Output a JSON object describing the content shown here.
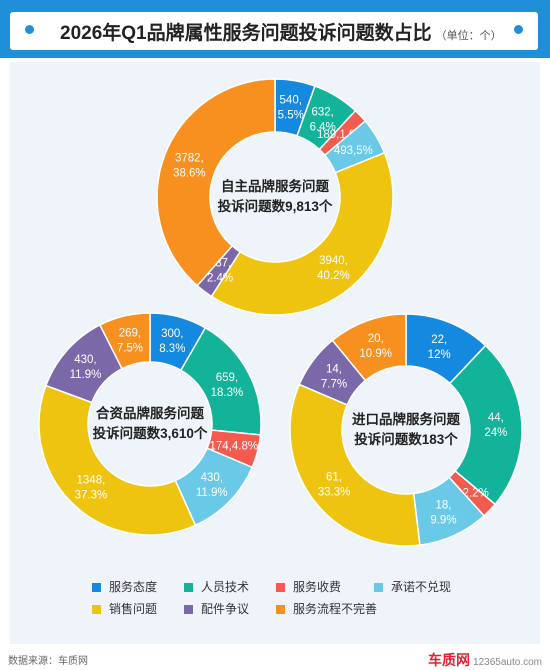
{
  "header": {
    "title": "2026年Q1品牌属性服务问题投诉问题数占比",
    "unit": "（单位：个）"
  },
  "colors": {
    "header_bar": "#1f8fd8",
    "panel_bg": "#eef4fa"
  },
  "chart_data": [
    {
      "type": "pie",
      "style": "donut",
      "center_text": [
        "自主品牌服务问题",
        "投诉问题数9,813个"
      ],
      "slices": [
        {
          "category": "服务态度",
          "value": 540,
          "percent": "5.5%",
          "label": [
            "540,",
            "5.5%"
          ]
        },
        {
          "category": "人员技术",
          "value": 632,
          "percent": "6.4%",
          "label": [
            "632,",
            "6.4%"
          ]
        },
        {
          "category": "服务收费",
          "value": 189,
          "percent": "1.9%",
          "label": [
            "189,1.9%"
          ]
        },
        {
          "category": "承诺不兑现",
          "value": 493,
          "percent": "5%",
          "label": [
            "493,5%"
          ]
        },
        {
          "category": "销售问题",
          "value": 3940,
          "percent": "40.2%",
          "label": [
            "3940,",
            "40.2%"
          ]
        },
        {
          "category": "配件争议",
          "value": 237,
          "percent": "2.4%",
          "label": [
            "237,",
            "2.4%"
          ]
        },
        {
          "category": "服务流程不完善",
          "value": 3782,
          "percent": "38.6%",
          "label": [
            "3782,",
            "38.6%"
          ]
        }
      ]
    },
    {
      "type": "pie",
      "style": "donut",
      "center_text": [
        "合资品牌服务问题",
        "投诉问题数3,610个"
      ],
      "slices": [
        {
          "category": "服务态度",
          "value": 300,
          "percent": "8.3%",
          "label": [
            "300,",
            "8.3%"
          ]
        },
        {
          "category": "人员技术",
          "value": 659,
          "percent": "18.3%",
          "label": [
            "659,",
            "18.3%"
          ]
        },
        {
          "category": "服务收费",
          "value": 174,
          "percent": "4.8%",
          "label": [
            "174,4.8%"
          ]
        },
        {
          "category": "承诺不兑现",
          "value": 430,
          "percent": "11.9%",
          "label": [
            "430,",
            "11.9%"
          ]
        },
        {
          "category": "销售问题",
          "value": 1348,
          "percent": "37.3%",
          "label": [
            "1348,",
            "37.3%"
          ]
        },
        {
          "category": "配件争议",
          "value": 430,
          "percent": "11.9%",
          "label": [
            "430,",
            "11.9%"
          ]
        },
        {
          "category": "服务流程不完善",
          "value": 269,
          "percent": "7.5%",
          "label": [
            "269,",
            "7.5%"
          ]
        }
      ]
    },
    {
      "type": "pie",
      "style": "donut",
      "center_text": [
        "进口品牌服务问题",
        "投诉问题数183个"
      ],
      "slices": [
        {
          "category": "服务态度",
          "value": 22,
          "percent": "12%",
          "label": [
            "22,",
            "12%"
          ]
        },
        {
          "category": "人员技术",
          "value": 44,
          "percent": "24%",
          "label": [
            "44,",
            "24%"
          ]
        },
        {
          "category": "服务收费",
          "value": 4,
          "percent": "2.2%",
          "label": [
            "4,2.2%"
          ]
        },
        {
          "category": "承诺不兑现",
          "value": 18,
          "percent": "9.9%",
          "label": [
            "18,",
            "9.9%"
          ]
        },
        {
          "category": "销售问题",
          "value": 61,
          "percent": "33.3%",
          "label": [
            "61,",
            "33.3%"
          ]
        },
        {
          "category": "配件争议",
          "value": 14,
          "percent": "7.7%",
          "label": [
            "14,",
            "7.7%"
          ]
        },
        {
          "category": "服务流程不完善",
          "value": 20,
          "percent": "10.9%",
          "label": [
            "20,",
            "10.9%"
          ]
        }
      ]
    }
  ],
  "legend": [
    {
      "label": "服务态度",
      "color": "#1589e0"
    },
    {
      "label": "人员技术",
      "color": "#13b39a"
    },
    {
      "label": "服务收费",
      "color": "#f25b4e"
    },
    {
      "label": "承诺不兑现",
      "color": "#69c9e6"
    },
    {
      "label": "销售问题",
      "color": "#efc410"
    },
    {
      "label": "配件争议",
      "color": "#7a68a8"
    },
    {
      "label": "服务流程不完善",
      "color": "#f7901e"
    }
  ],
  "footer": {
    "source": "数据来源：车质网",
    "watermark_logo": "车质网",
    "watermark_url": "12365auto.com"
  }
}
